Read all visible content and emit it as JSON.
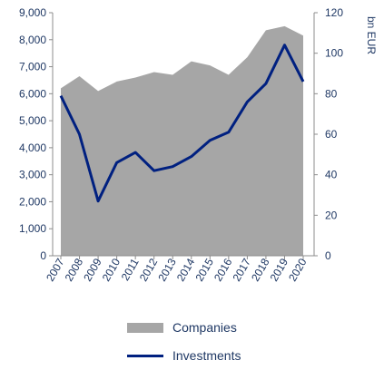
{
  "chart_data": {
    "type": "area",
    "categories": [
      "2007",
      "2008",
      "2009",
      "2010",
      "2011",
      "2012",
      "2013",
      "2014",
      "2015",
      "2016",
      "2017",
      "2018",
      "2019",
      "2020"
    ],
    "series": [
      {
        "name": "Companies",
        "type": "area",
        "axis": "left",
        "color": "#a6a6a6",
        "values": [
          6200,
          6650,
          6100,
          6450,
          6600,
          6800,
          6700,
          7200,
          7050,
          6700,
          7350,
          8350,
          8500,
          8150
        ]
      },
      {
        "name": "Investments",
        "type": "line",
        "axis": "right",
        "color": "#002080",
        "values": [
          79,
          60,
          27,
          46,
          51,
          42,
          44,
          49,
          57,
          61,
          76,
          85,
          104,
          86
        ]
      }
    ],
    "y_left": {
      "ylim": [
        0,
        9000
      ],
      "ticks": [
        "0",
        "1,000",
        "2,000",
        "3,000",
        "4,000",
        "5,000",
        "6,000",
        "7,000",
        "8,000",
        "9,000"
      ]
    },
    "y_right": {
      "label": "bn EUR",
      "ylim": [
        0,
        120
      ],
      "ticks": [
        "0",
        "20",
        "40",
        "60",
        "80",
        "100",
        "120"
      ]
    },
    "grid": false,
    "legend": "bottom"
  }
}
